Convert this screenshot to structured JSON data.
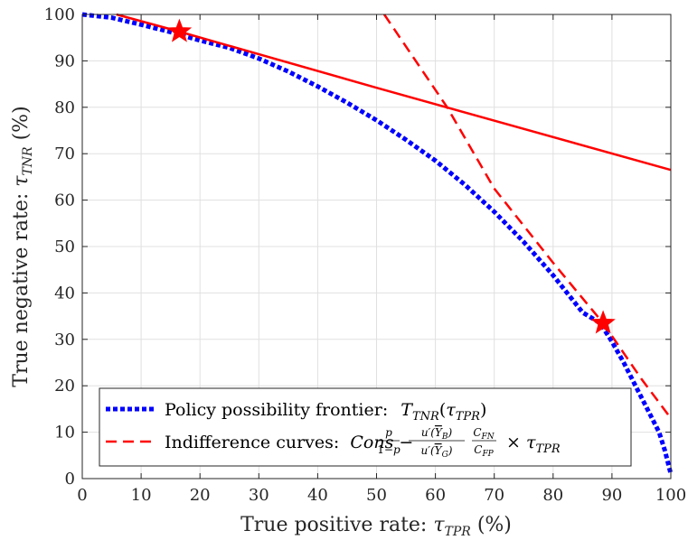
{
  "chart_data": {
    "type": "line",
    "xlabel": "True positive rate: τ_TPR (%)",
    "ylabel": "True negative rate: τ_TNR (%)",
    "xlim": [
      0,
      100
    ],
    "ylim": [
      0,
      100
    ],
    "xticks": [
      0,
      10,
      20,
      30,
      40,
      50,
      60,
      70,
      80,
      90,
      100
    ],
    "yticks": [
      0,
      10,
      20,
      30,
      40,
      50,
      60,
      70,
      80,
      90,
      100
    ],
    "grid": true,
    "legend_placement": "bottom-left",
    "series": [
      {
        "name": "Policy possibility frontier: T_TNR(τ_TPR)",
        "style": "dotted",
        "color": "#0000ff",
        "x": [
          0,
          5,
          10,
          15,
          20,
          25,
          30,
          35,
          40,
          45,
          50,
          55,
          60,
          65,
          70,
          75,
          80,
          85,
          88,
          90,
          92,
          94,
          96,
          98,
          99,
          100
        ],
        "y": [
          100,
          99.3,
          97.8,
          96.2,
          94.4,
          92.8,
          90.5,
          87.7,
          84.5,
          81.0,
          77.2,
          73.0,
          68.5,
          63.3,
          57.5,
          51.0,
          43.8,
          35.8,
          33.5,
          29.5,
          25.0,
          20.0,
          15.0,
          10.0,
          6.0,
          1.0
        ]
      },
      {
        "name": "Indifference curves",
        "style": "dashed",
        "color": "#ff0000",
        "x": [
          51.3,
          62,
          70,
          80,
          88.5,
          95,
          100
        ],
        "y": [
          100,
          80,
          62.5,
          46.5,
          33.5,
          21.5,
          13.0
        ]
      },
      {
        "name": "",
        "style": "solid",
        "color": "#ff0000",
        "x": [
          5.8,
          16.5,
          50,
          100
        ],
        "y": [
          100,
          96.3,
          84.2,
          66.5
        ]
      }
    ],
    "markers": [
      {
        "shape": "star",
        "color": "#ff0000",
        "x": 16.5,
        "y": 96.3
      },
      {
        "shape": "star",
        "color": "#ff0000",
        "x": 88.5,
        "y": 33.5
      }
    ],
    "legend": {
      "entries": [
        {
          "label": "Policy possibility frontier:",
          "formula": "T_TNR(τ_TPR)"
        },
        {
          "label": "Indifference curves:",
          "formula": "Cons − p/(1−p) · u′(Ȳ_B)/u′(Ȳ_G) · C_FN/C_FP × τ_TPR"
        }
      ]
    }
  }
}
